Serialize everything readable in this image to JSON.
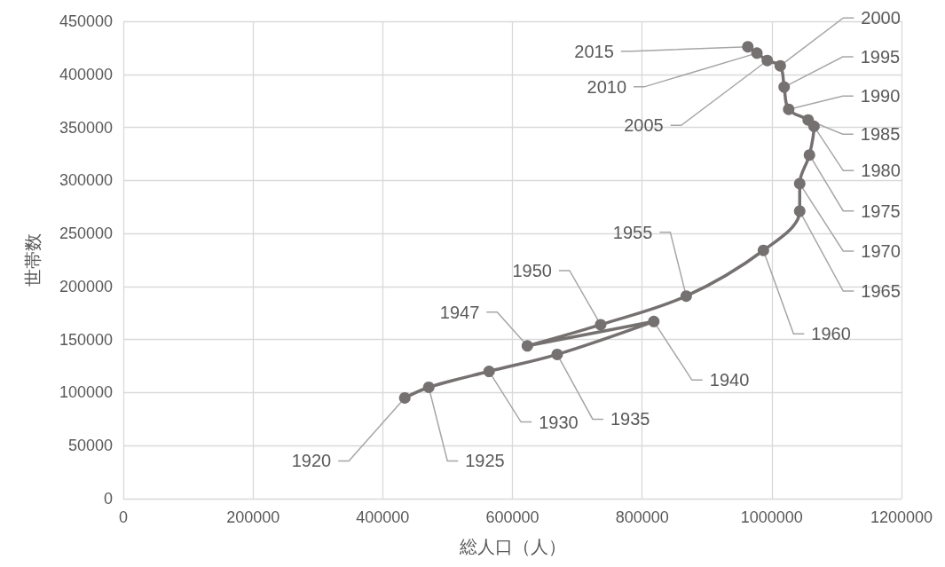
{
  "chart_data": {
    "type": "line",
    "xlabel": "総人口（人）",
    "ylabel": "世帯数",
    "xlim": [
      0,
      1200000
    ],
    "xticks": [
      0,
      200000,
      400000,
      600000,
      800000,
      1000000,
      1200000
    ],
    "ylim": [
      0,
      450000
    ],
    "yticks": [
      0,
      50000,
      100000,
      150000,
      200000,
      250000,
      300000,
      350000,
      400000,
      450000
    ],
    "grid": true,
    "marker": "circle",
    "line_style": "solid",
    "series": [
      {
        "color": "#767171",
        "x": [
          434000,
          471000,
          564000,
          669000,
          818000,
          623000,
          736000,
          868000,
          987000,
          1043000,
          1043000,
          1058000,
          1065000,
          1056000,
          1026000,
          1019000,
          1013000,
          993000,
          977000,
          963000
        ],
        "values": [
          95000,
          105000,
          120000,
          136000,
          167000,
          144000,
          164000,
          191000,
          234000,
          271000,
          297000,
          324000,
          351000,
          357000,
          367000,
          388000,
          408000,
          413000,
          420000,
          426000
        ]
      }
    ],
    "annotations": [
      {
        "text": "1920",
        "x": 434000,
        "y": 95000
      },
      {
        "text": "1925",
        "x": 471000,
        "y": 105000
      },
      {
        "text": "1930",
        "x": 564000,
        "y": 120000
      },
      {
        "text": "1935",
        "x": 669000,
        "y": 136000
      },
      {
        "text": "1940",
        "x": 818000,
        "y": 167000
      },
      {
        "text": "1947",
        "x": 623000,
        "y": 144000
      },
      {
        "text": "1950",
        "x": 736000,
        "y": 164000
      },
      {
        "text": "1955",
        "x": 868000,
        "y": 191000
      },
      {
        "text": "1960",
        "x": 987000,
        "y": 234000
      },
      {
        "text": "1965",
        "x": 1043000,
        "y": 271000
      },
      {
        "text": "1970",
        "x": 1043000,
        "y": 297000
      },
      {
        "text": "1975",
        "x": 1058000,
        "y": 324000
      },
      {
        "text": "1980",
        "x": 1065000,
        "y": 351000
      },
      {
        "text": "1985",
        "x": 1056000,
        "y": 357000
      },
      {
        "text": "1990",
        "x": 1026000,
        "y": 367000
      },
      {
        "text": "1995",
        "x": 1019000,
        "y": 388000
      },
      {
        "text": "2000",
        "x": 1013000,
        "y": 408000
      },
      {
        "text": "2005",
        "x": 993000,
        "y": 413000
      },
      {
        "text": "2010",
        "x": 977000,
        "y": 420000
      },
      {
        "text": "2015",
        "x": 963000,
        "y": 426000
      }
    ]
  }
}
